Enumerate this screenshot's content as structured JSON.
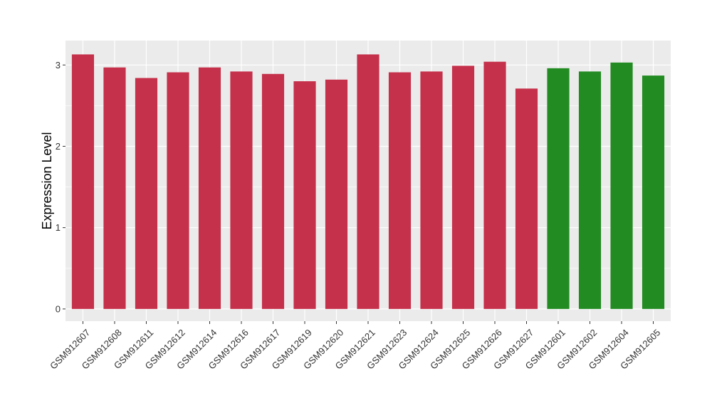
{
  "chart_data": {
    "type": "bar",
    "title": "",
    "xlabel": "",
    "ylabel": "Expression Level",
    "ylim": [
      -0.15,
      3.3
    ],
    "yticks": [
      0,
      1,
      2,
      3
    ],
    "grid": true,
    "legend": "none",
    "categories": [
      "GSM912607",
      "GSM912608",
      "GSM912611",
      "GSM912612",
      "GSM912614",
      "GSM912616",
      "GSM912617",
      "GSM912619",
      "GSM912620",
      "GSM912621",
      "GSM912623",
      "GSM912624",
      "GSM912625",
      "GSM912626",
      "GSM912627",
      "GSM912601",
      "GSM912602",
      "GSM912604",
      "GSM912605"
    ],
    "values": [
      3.13,
      2.97,
      2.84,
      2.91,
      2.97,
      2.92,
      2.89,
      2.8,
      2.82,
      3.13,
      2.91,
      2.92,
      2.99,
      3.04,
      2.71,
      2.96,
      2.92,
      3.03,
      2.87
    ],
    "groups": [
      0,
      0,
      0,
      0,
      0,
      0,
      0,
      0,
      0,
      0,
      0,
      0,
      0,
      0,
      0,
      1,
      1,
      1,
      1
    ],
    "group_colors": [
      "#c5304a",
      "#228b22"
    ],
    "panel_background": "#ebebeb",
    "grid_color": "#ffffff"
  }
}
